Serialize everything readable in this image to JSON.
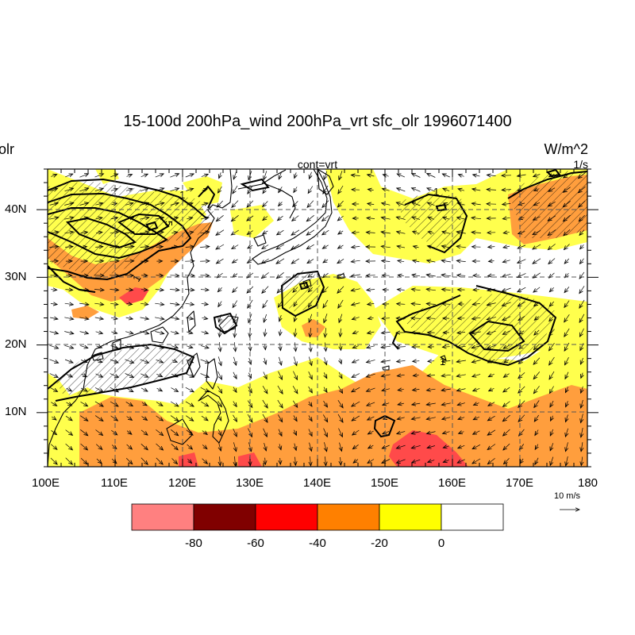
{
  "title": "15-100d 200hPa_wind 200hPa_vrt sfc_olr 1996071400",
  "left_label": "olr",
  "right_label": "W/m^2",
  "contour_label": "cont=vrt",
  "contour_units": "1/s",
  "reference_vector": "10 m/s",
  "map": {
    "lon_range": [
      100,
      180
    ],
    "lat_range": [
      2,
      46
    ],
    "x_tick_labels": [
      "100E",
      "110E",
      "120E",
      "130E",
      "140E",
      "150E",
      "160E",
      "170E",
      "180"
    ],
    "y_tick_labels": [
      "10N",
      "20N",
      "30N",
      "40N"
    ],
    "contour_labels": [
      "1",
      "5",
      "1",
      "1",
      "1"
    ]
  },
  "colorbar": {
    "labels": [
      "-80",
      "-60",
      "-40",
      "-20",
      "0"
    ],
    "colors": [
      "#ff8080",
      "#800000",
      "#ff0000",
      "#ff8000",
      "#ffff00",
      "#ffffff"
    ]
  },
  "colors": {
    "yellow": "#ffff4d",
    "orange": "#ff9e3d",
    "red": "#ff4a4a",
    "land": "#000000"
  }
}
